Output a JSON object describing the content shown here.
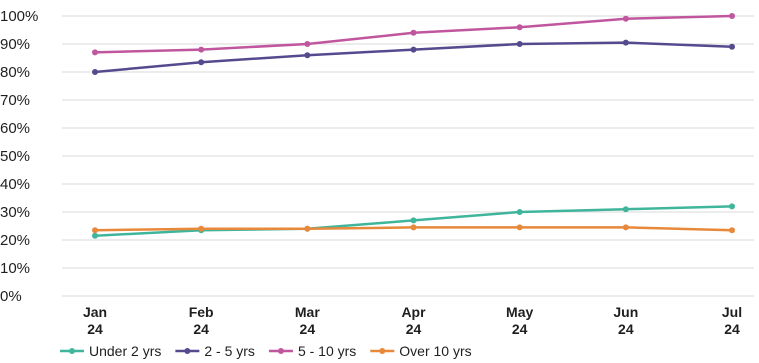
{
  "chart_data": {
    "type": "line",
    "title": "",
    "xlabel": "",
    "ylabel": "",
    "categories": [
      [
        "Jan",
        "24"
      ],
      [
        "Feb",
        "24"
      ],
      [
        "Mar",
        "24"
      ],
      [
        "Apr",
        "24"
      ],
      [
        "May",
        "24"
      ],
      [
        "Jun",
        "24"
      ],
      [
        "Jul",
        "24"
      ]
    ],
    "ylim": [
      0,
      100
    ],
    "yticks": [
      0,
      10,
      20,
      30,
      40,
      50,
      60,
      70,
      80,
      90,
      100
    ],
    "ytick_labels": [
      "0%",
      "10%",
      "20%",
      "30%",
      "40%",
      "50%",
      "60%",
      "70%",
      "80%",
      "90%",
      "100%"
    ],
    "grid": true,
    "legend_position": "bottom",
    "series": [
      {
        "name": "Under 2 yrs",
        "color": "#3fb59b",
        "values": [
          21.5,
          23.5,
          24,
          27,
          30,
          31,
          32
        ]
      },
      {
        "name": "2 - 5 yrs",
        "color": "#544b8f",
        "values": [
          80,
          83.5,
          86,
          88,
          90,
          90.5,
          89
        ]
      },
      {
        "name": "5 - 10 yrs",
        "color": "#c0569e",
        "values": [
          87,
          88,
          90,
          94,
          96,
          99,
          100
        ]
      },
      {
        "name": "Over 10 yrs",
        "color": "#e8883b",
        "values": [
          23.5,
          24,
          24,
          24.5,
          24.5,
          24.5,
          23.5
        ]
      }
    ]
  }
}
